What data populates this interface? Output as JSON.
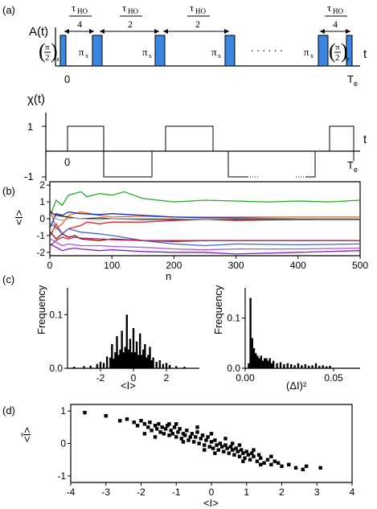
{
  "figure": {
    "panel_labels": {
      "a": "(a)",
      "b": "(b)",
      "c": "(c)",
      "d": "(d)"
    }
  },
  "panel_a": {
    "top": {
      "ylabel": "A(t)",
      "xlabel": "t",
      "zero_label": "0",
      "end_label": "T",
      "end_sub": "e",
      "tau_symbol": "τ",
      "tau_sub": "HO",
      "intervals": [
        {
          "denominator": "4"
        },
        {
          "denominator": "2"
        },
        {
          "denominator": "2"
        },
        {
          "denominator": "4"
        }
      ],
      "pi_label": "π",
      "pi_sub": "x",
      "frac_pi": "π",
      "frac_two": "2",
      "first_sub": "x",
      "last_sub": "y",
      "ellipsis": ". . . . . .",
      "pulse_color": "#3b86e0"
    },
    "bottom": {
      "ylabel": "χ(t)",
      "xlabel": "t",
      "y_ticks": [
        "1",
        "-1"
      ],
      "zero_label": "0",
      "end_label": "T",
      "end_sub": "e"
    }
  },
  "chart_data": [
    {
      "panel": "b",
      "type": "line",
      "xlabel": "n",
      "ylabel": "<I>",
      "xlim": [
        0,
        500
      ],
      "ylim": [
        -2.2,
        2.2
      ],
      "xticks": [
        0,
        100,
        200,
        300,
        400,
        500
      ],
      "yticks": [
        2,
        1,
        0,
        -1,
        -2
      ],
      "series": [
        {
          "color": "#22aa22",
          "x": [
            1,
            10,
            20,
            30,
            40,
            50,
            60,
            80,
            100,
            120,
            150,
            200,
            250,
            300,
            350,
            400,
            450,
            500
          ],
          "y": [
            0.2,
            1.1,
            0.8,
            1.4,
            1.5,
            1.6,
            1.3,
            1.5,
            1.4,
            1.6,
            1.2,
            1.0,
            1.1,
            1.05,
            1.0,
            1.05,
            1.0,
            1.1
          ]
        },
        {
          "color": "#e02020",
          "x": [
            1,
            10,
            20,
            30,
            40,
            50,
            60,
            80,
            100,
            150,
            200,
            250,
            300,
            400,
            500
          ],
          "y": [
            -1.0,
            -0.3,
            -0.9,
            -0.6,
            -0.5,
            -0.4,
            -0.2,
            -0.3,
            -0.2,
            -0.2,
            -0.1,
            -0.05,
            -0.1,
            -0.05,
            -0.02
          ]
        },
        {
          "color": "#ff6010",
          "x": [
            1,
            10,
            20,
            30,
            40,
            50,
            80,
            100,
            150,
            200,
            250,
            300,
            400,
            500
          ],
          "y": [
            0.5,
            -0.6,
            -0.3,
            0.2,
            0.3,
            0.4,
            0.2,
            0.1,
            0.15,
            0.1,
            0.1,
            0.1,
            0.1,
            0.1
          ]
        },
        {
          "color": "#1030c0",
          "x": [
            1,
            10,
            20,
            30,
            40,
            50,
            80,
            100,
            150,
            200,
            250,
            300,
            400,
            500
          ],
          "y": [
            -0.5,
            0.3,
            0.2,
            0.4,
            0.35,
            0.3,
            0.25,
            0.3,
            0.2,
            0.1,
            0.05,
            0.05,
            0.0,
            0.0
          ]
        },
        {
          "color": "#202020",
          "x": [
            1,
            10,
            20,
            30,
            40,
            50,
            80,
            100,
            150,
            200,
            250,
            300,
            400,
            500
          ],
          "y": [
            0.4,
            0.2,
            0.15,
            0.1,
            0.05,
            0.0,
            0.05,
            0.0,
            -0.05,
            -0.05,
            -0.05,
            -0.05,
            -0.05,
            -0.05
          ]
        },
        {
          "color": "#a0a0a0",
          "x": [
            1,
            10,
            20,
            30,
            40,
            50,
            80,
            100,
            150,
            200,
            250,
            300,
            400,
            500
          ],
          "y": [
            0.3,
            0.0,
            -0.1,
            0.0,
            0.05,
            0.0,
            -0.05,
            0.0,
            0.0,
            0.0,
            -0.05,
            0.0,
            0.0,
            0.0
          ]
        },
        {
          "color": "#4060e0",
          "x": [
            1,
            10,
            20,
            30,
            40,
            50,
            80,
            100,
            150,
            200,
            250,
            300,
            400,
            500
          ],
          "y": [
            -0.3,
            -0.5,
            -0.9,
            -0.6,
            -0.7,
            -0.8,
            -0.9,
            -1.0,
            -1.3,
            -1.5,
            -1.6,
            -1.5,
            -1.55,
            -1.5
          ]
        },
        {
          "color": "#7a1010",
          "x": [
            1,
            10,
            20,
            30,
            40,
            50,
            80,
            100,
            150,
            200,
            250,
            300,
            400,
            500
          ],
          "y": [
            -0.8,
            -1.2,
            -0.9,
            -1.1,
            -1.0,
            -1.2,
            -1.3,
            -1.2,
            -1.3,
            -1.35,
            -1.3,
            -1.3,
            -1.3,
            -1.3
          ]
        },
        {
          "color": "#c02050",
          "x": [
            1,
            10,
            20,
            30,
            40,
            50,
            80,
            100,
            150,
            200,
            250,
            300,
            400,
            500
          ],
          "y": [
            -1.6,
            -1.3,
            -1.1,
            -1.2,
            -1.1,
            -1.15,
            -1.2,
            -1.25,
            -1.3,
            -1.3,
            -1.3,
            -1.3,
            -1.3,
            -1.3
          ]
        },
        {
          "color": "#8020c0",
          "x": [
            1,
            10,
            20,
            30,
            40,
            50,
            80,
            100,
            150,
            200,
            250,
            300,
            400,
            500
          ],
          "y": [
            -1.5,
            -1.7,
            -1.9,
            -1.8,
            -1.75,
            -1.8,
            -1.9,
            -1.85,
            -1.95,
            -2.0,
            -2.0,
            -2.1,
            -2.0,
            -1.9
          ]
        },
        {
          "color": "#b050e0",
          "x": [
            1,
            10,
            20,
            30,
            40,
            50,
            80,
            100,
            150,
            200,
            250,
            300,
            400,
            500
          ],
          "y": [
            -1.2,
            -1.4,
            -1.6,
            -1.5,
            -1.55,
            -1.6,
            -1.6,
            -1.65,
            -1.7,
            -1.8,
            -1.85,
            -1.8,
            -1.8,
            -1.75
          ]
        }
      ]
    },
    {
      "panel": "c-left",
      "type": "bar",
      "xlabel": "<I>",
      "ylabel": "Frequency",
      "xlim": [
        -4,
        4
      ],
      "ylim": [
        0,
        0.15
      ],
      "xticks": [
        -2,
        0,
        2
      ],
      "yticks": [
        0.0,
        0.1
      ],
      "x": [
        -3.6,
        -3.0,
        -2.6,
        -2.2,
        -2.0,
        -1.8,
        -1.6,
        -1.4,
        -1.3,
        -1.2,
        -1.1,
        -1.0,
        -0.9,
        -0.8,
        -0.7,
        -0.6,
        -0.5,
        -0.4,
        -0.3,
        -0.2,
        -0.1,
        0.0,
        0.1,
        0.2,
        0.3,
        0.4,
        0.5,
        0.6,
        0.7,
        0.8,
        0.9,
        1.0,
        1.1,
        1.2,
        1.4,
        1.6,
        1.8,
        2.0,
        2.2,
        2.6,
        3.1
      ],
      "values": [
        0.003,
        0.004,
        0.005,
        0.008,
        0.012,
        0.01,
        0.022,
        0.02,
        0.045,
        0.018,
        0.03,
        0.06,
        0.025,
        0.035,
        0.07,
        0.03,
        0.04,
        0.1,
        0.035,
        0.055,
        0.03,
        0.075,
        0.03,
        0.05,
        0.025,
        0.065,
        0.025,
        0.035,
        0.045,
        0.02,
        0.025,
        0.04,
        0.015,
        0.02,
        0.012,
        0.015,
        0.008,
        0.01,
        0.006,
        0.004,
        0.003
      ]
    },
    {
      "panel": "c-right",
      "type": "bar",
      "xlabel": "(ΔI)²",
      "ylabel": "Frequency",
      "xlim": [
        0,
        0.065
      ],
      "ylim": [
        0,
        0.16
      ],
      "xticks": [
        0.0,
        0.05
      ],
      "yticks": [
        0.0,
        0.1
      ],
      "x": [
        0.002,
        0.003,
        0.004,
        0.005,
        0.006,
        0.007,
        0.008,
        0.009,
        0.01,
        0.011,
        0.012,
        0.013,
        0.014,
        0.015,
        0.016,
        0.018,
        0.02,
        0.022,
        0.024,
        0.026,
        0.028,
        0.03,
        0.032,
        0.034,
        0.036,
        0.038,
        0.04,
        0.042,
        0.044,
        0.046,
        0.048
      ],
      "values": [
        0.01,
        0.14,
        0.06,
        0.04,
        0.03,
        0.025,
        0.02,
        0.025,
        0.015,
        0.02,
        0.02,
        0.015,
        0.02,
        0.01,
        0.015,
        0.01,
        0.012,
        0.008,
        0.01,
        0.008,
        0.006,
        0.01,
        0.006,
        0.008,
        0.005,
        0.006,
        0.01,
        0.005,
        0.006,
        0.004,
        0.005
      ]
    },
    {
      "panel": "d",
      "type": "scatter",
      "xlabel": "<I>",
      "ylabel": "<Ĩ>",
      "xlim": [
        -4,
        4
      ],
      "ylim": [
        -1.2,
        1.2
      ],
      "xticks": [
        -4,
        -3,
        -2,
        -1,
        0,
        1,
        2,
        3,
        4
      ],
      "yticks": [
        1,
        0,
        -1
      ],
      "points": [
        [
          -3.6,
          0.95
        ],
        [
          -3.0,
          0.85
        ],
        [
          -2.6,
          0.7
        ],
        [
          -2.4,
          0.75
        ],
        [
          -2.2,
          0.65
        ],
        [
          -2.1,
          0.55
        ],
        [
          -2.0,
          0.7
        ],
        [
          -1.9,
          0.6
        ],
        [
          -1.8,
          0.5
        ],
        [
          -1.75,
          0.65
        ],
        [
          -1.7,
          0.4
        ],
        [
          -1.6,
          0.55
        ],
        [
          -1.55,
          0.45
        ],
        [
          -1.5,
          0.6
        ],
        [
          -1.45,
          0.35
        ],
        [
          -1.4,
          0.5
        ],
        [
          -1.35,
          0.3
        ],
        [
          -1.3,
          0.45
        ],
        [
          -1.25,
          0.55
        ],
        [
          -1.2,
          0.25
        ],
        [
          -1.15,
          0.4
        ],
        [
          -1.1,
          0.3
        ],
        [
          -1.05,
          0.5
        ],
        [
          -1.0,
          0.2
        ],
        [
          -0.95,
          0.35
        ],
        [
          -0.9,
          0.45
        ],
        [
          -0.85,
          0.15
        ],
        [
          -0.8,
          0.3
        ],
        [
          -0.75,
          0.25
        ],
        [
          -0.7,
          0.4
        ],
        [
          -0.65,
          0.1
        ],
        [
          -0.6,
          0.2
        ],
        [
          -0.55,
          0.3
        ],
        [
          -0.5,
          0.05
        ],
        [
          -0.45,
          0.2
        ],
        [
          -0.4,
          0.35
        ],
        [
          -0.35,
          0.0
        ],
        [
          -0.3,
          0.15
        ],
        [
          -0.25,
          0.25
        ],
        [
          -0.2,
          -0.05
        ],
        [
          -0.15,
          0.1
        ],
        [
          -0.1,
          0.2
        ],
        [
          -0.05,
          -0.1
        ],
        [
          0.0,
          0.05
        ],
        [
          0.05,
          -0.15
        ],
        [
          0.1,
          0.1
        ],
        [
          0.15,
          -0.05
        ],
        [
          0.2,
          -0.2
        ],
        [
          0.25,
          0.0
        ],
        [
          0.3,
          -0.1
        ],
        [
          0.35,
          -0.25
        ],
        [
          0.4,
          -0.05
        ],
        [
          0.45,
          -0.15
        ],
        [
          0.5,
          -0.3
        ],
        [
          0.55,
          -0.1
        ],
        [
          0.6,
          -0.2
        ],
        [
          0.65,
          -0.35
        ],
        [
          0.7,
          -0.15
        ],
        [
          0.75,
          -0.25
        ],
        [
          0.8,
          -0.4
        ],
        [
          0.85,
          -0.2
        ],
        [
          0.9,
          -0.3
        ],
        [
          0.95,
          -0.45
        ],
        [
          1.0,
          -0.25
        ],
        [
          1.05,
          -0.35
        ],
        [
          1.1,
          -0.5
        ],
        [
          1.15,
          -0.3
        ],
        [
          1.2,
          -0.4
        ],
        [
          1.3,
          -0.55
        ],
        [
          1.35,
          -0.35
        ],
        [
          1.4,
          -0.45
        ],
        [
          1.5,
          -0.6
        ],
        [
          1.6,
          -0.5
        ],
        [
          1.7,
          -0.65
        ],
        [
          1.8,
          -0.55
        ],
        [
          1.9,
          -0.6
        ],
        [
          2.0,
          -0.7
        ],
        [
          2.2,
          -0.65
        ],
        [
          2.4,
          -0.75
        ],
        [
          2.6,
          -0.8
        ],
        [
          2.7,
          -0.7
        ],
        [
          3.1,
          -0.75
        ],
        [
          -1.9,
          0.3
        ],
        [
          -1.2,
          0.6
        ],
        [
          -0.8,
          0.05
        ],
        [
          -0.4,
          0.5
        ],
        [
          0.1,
          -0.3
        ],
        [
          0.4,
          0.15
        ],
        [
          0.8,
          -0.05
        ],
        [
          1.2,
          -0.2
        ],
        [
          -1.6,
          0.2
        ],
        [
          0.6,
          0.0
        ],
        [
          1.4,
          -0.65
        ],
        [
          -0.2,
          -0.2
        ],
        [
          0.0,
          0.3
        ],
        [
          -1.0,
          0.6
        ],
        [
          0.9,
          -0.55
        ],
        [
          1.7,
          -0.4
        ]
      ]
    }
  ]
}
